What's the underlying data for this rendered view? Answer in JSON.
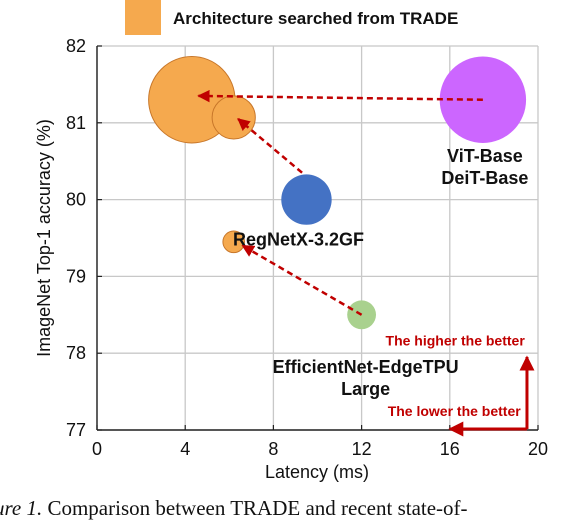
{
  "legend": {
    "label": "Architecture searched from TRADE",
    "swatch_color": "#f5a94e"
  },
  "chart_data": {
    "type": "scatter",
    "xlabel": "Latency (ms)",
    "ylabel": "ImageNet Top-1 accuracy (%)",
    "xlim": [
      0,
      20
    ],
    "ylim": [
      77,
      82
    ],
    "xticks": [
      0,
      4,
      8,
      12,
      16,
      20
    ],
    "yticks": [
      77,
      78,
      79,
      80,
      81,
      82
    ],
    "grid": true,
    "legend_position": "top",
    "points": [
      {
        "x": 4.3,
        "y": 81.3,
        "size": 6.0,
        "color": "#f5a94e",
        "label": "",
        "searched": true
      },
      {
        "x": 6.2,
        "y": 81.07,
        "size": 3.0,
        "color": "#f5a94e",
        "label": "",
        "searched": true
      },
      {
        "x": 6.2,
        "y": 79.45,
        "size": 1.5,
        "color": "#f5a94e",
        "label": "",
        "searched": true
      },
      {
        "x": 9.5,
        "y": 80.0,
        "size": 3.5,
        "color": "#4472c4",
        "label": "RegNetX-3.2GF",
        "searched": false
      },
      {
        "x": 12.0,
        "y": 78.5,
        "size": 2.0,
        "color": "#a9d18e",
        "label": "EfficientNet-EdgeTPU\nLarge",
        "searched": false
      },
      {
        "x": 17.5,
        "y": 81.3,
        "size": 6.0,
        "color": "#cc66ff",
        "label": "ViT-Base\nDeiT-Base",
        "searched": false
      }
    ],
    "arrows": [
      {
        "from": [
          17.5,
          81.3
        ],
        "to": [
          4.6,
          81.35
        ]
      },
      {
        "from": [
          9.3,
          80.35
        ],
        "to": [
          6.4,
          81.05
        ]
      },
      {
        "from": [
          12.0,
          78.5
        ],
        "to": [
          6.6,
          79.4
        ]
      }
    ],
    "annotations": {
      "higher": "The higher the better",
      "lower": "The lower the better",
      "color": "#c00000"
    }
  },
  "caption": {
    "prefix": "ure 1.",
    "text": " Comparison between TRADE and recent state-of-"
  }
}
